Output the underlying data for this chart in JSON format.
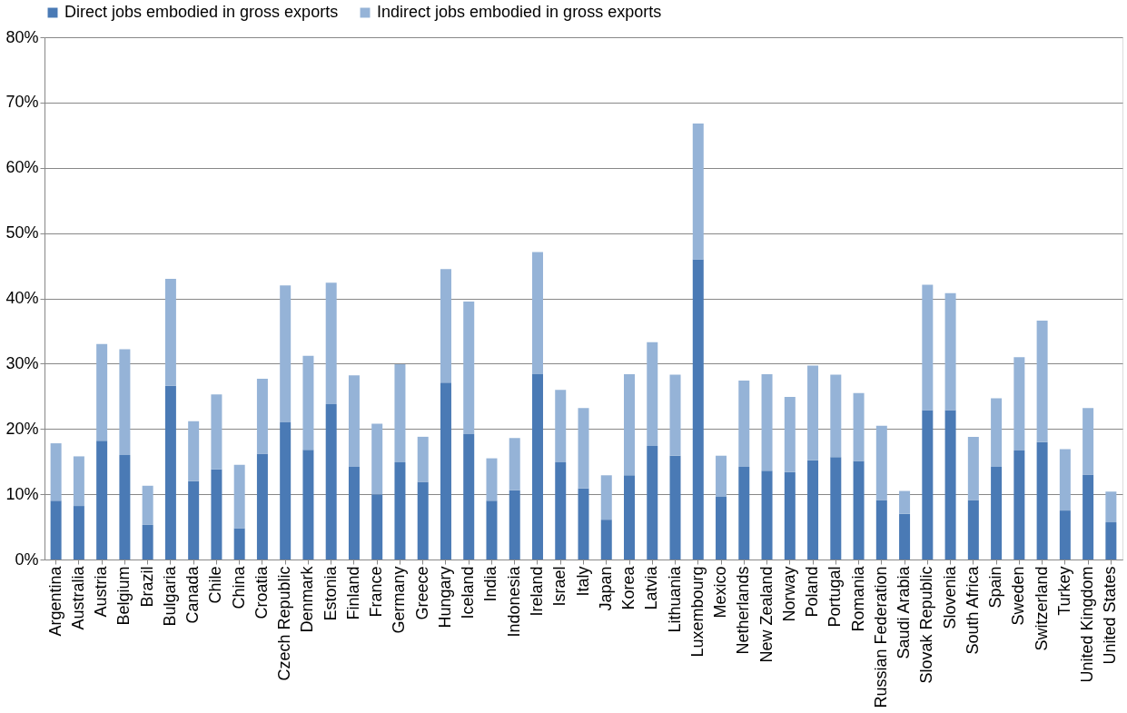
{
  "chart_data": {
    "type": "bar",
    "stacked": true,
    "legend": "top",
    "grid": "y",
    "categories": [
      "Argentina",
      "Australia",
      "Austria",
      "Belgium",
      "Brazil",
      "Bulgaria",
      "Canada",
      "Chile",
      "China",
      "Croatia",
      "Czech Republic",
      "Denmark",
      "Estonia",
      "Finland",
      "France",
      "Germany",
      "Greece",
      "Hungary",
      "Iceland",
      "India",
      "Indonesia",
      "Ireland",
      "Israel",
      "Italy",
      "Japan",
      "Korea",
      "Latvia",
      "Lithuania",
      "Luxembourg",
      "Mexico",
      "Netherlands",
      "New Zealand",
      "Norway",
      "Poland",
      "Portugal",
      "Romania",
      "Russian Federation",
      "Saudi Arabia",
      "Slovak Republic",
      "Slovenia",
      "South Africa",
      "Spain",
      "Sweden",
      "Switzerland",
      "Turkey",
      "United Kingdom",
      "United States"
    ],
    "series": [
      {
        "name": "Direct jobs embodied in gross exports",
        "color": "#4a7ab5",
        "values": [
          9.0,
          8.2,
          18.2,
          16.0,
          5.3,
          26.6,
          12.0,
          13.8,
          4.8,
          16.2,
          21.0,
          16.8,
          23.8,
          14.2,
          10.0,
          14.9,
          11.9,
          27.1,
          19.2,
          9.0,
          10.6,
          28.4,
          14.9,
          10.9,
          6.1,
          12.9,
          17.4,
          15.9,
          46.0,
          9.6,
          14.2,
          13.6,
          13.4,
          15.2,
          15.7,
          15.1,
          9.1,
          7.0,
          22.9,
          22.9,
          9.1,
          14.2,
          16.7,
          18.0,
          7.5,
          13.0,
          5.7
        ]
      },
      {
        "name": "Indirect jobs embodied in gross exports",
        "color": "#95b3d7",
        "values": [
          8.8,
          7.6,
          14.8,
          16.2,
          6.0,
          16.4,
          9.2,
          11.5,
          9.7,
          11.5,
          21.0,
          14.4,
          18.6,
          14.0,
          10.8,
          15.0,
          6.9,
          17.4,
          20.3,
          6.5,
          8.0,
          18.7,
          11.1,
          12.3,
          6.8,
          15.5,
          15.9,
          12.4,
          20.8,
          6.3,
          13.2,
          14.8,
          11.5,
          14.5,
          12.6,
          10.4,
          11.4,
          3.5,
          19.2,
          17.9,
          9.7,
          10.5,
          14.3,
          18.6,
          9.4,
          10.2,
          4.7
        ]
      }
    ],
    "ylim": [
      0,
      80
    ],
    "yticks": [
      {
        "value": 0,
        "label": "0%"
      },
      {
        "value": 10,
        "label": "10%"
      },
      {
        "value": 20,
        "label": "20%"
      },
      {
        "value": 30,
        "label": "30%"
      },
      {
        "value": 40,
        "label": "40%"
      },
      {
        "value": 50,
        "label": "50%"
      },
      {
        "value": 60,
        "label": "60%"
      },
      {
        "value": 70,
        "label": "70%"
      },
      {
        "value": 80,
        "label": "80%"
      }
    ]
  }
}
